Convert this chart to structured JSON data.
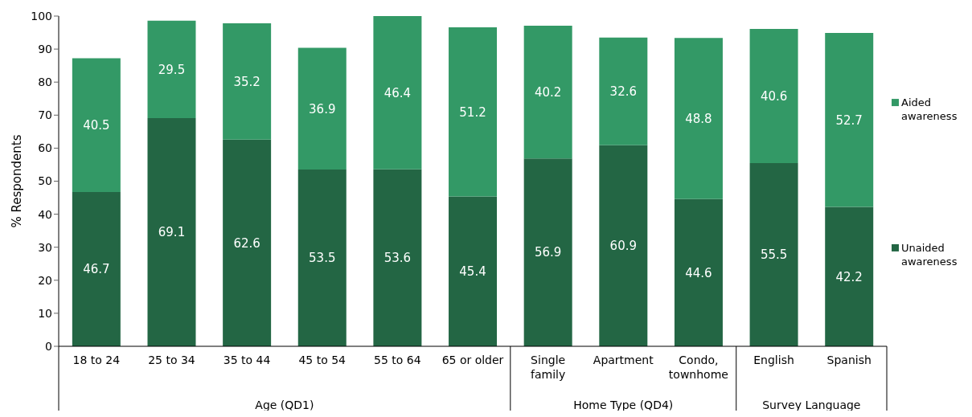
{
  "chart_data": {
    "type": "bar",
    "stacked": true,
    "categories": [
      "18 to 24",
      "25 to 34",
      "35 to 44",
      "45 to 54",
      "55 to 64",
      "65 or older",
      "Single family",
      "Apartment",
      "Condo, townhome",
      "English",
      "Spanish"
    ],
    "series": [
      {
        "name": "Unaided awareness",
        "color": "#236644",
        "values": [
          46.7,
          69.1,
          62.6,
          53.5,
          53.6,
          45.4,
          56.9,
          60.9,
          44.6,
          55.5,
          42.2
        ]
      },
      {
        "name": "Aided awareness",
        "color": "#339966",
        "values": [
          40.5,
          29.5,
          35.2,
          36.9,
          46.4,
          51.2,
          40.2,
          32.6,
          48.8,
          40.6,
          52.7
        ]
      }
    ],
    "ylabel": "% Respondents",
    "ylim": [
      0,
      100
    ],
    "yticks": [
      0,
      10,
      20,
      30,
      40,
      50,
      60,
      70,
      80,
      90,
      100
    ],
    "grid": false,
    "legend": "right",
    "data_labels": true,
    "annotations": [
      "Age (QD1)",
      "Home Type (QD4)",
      "Survey Language"
    ]
  }
}
